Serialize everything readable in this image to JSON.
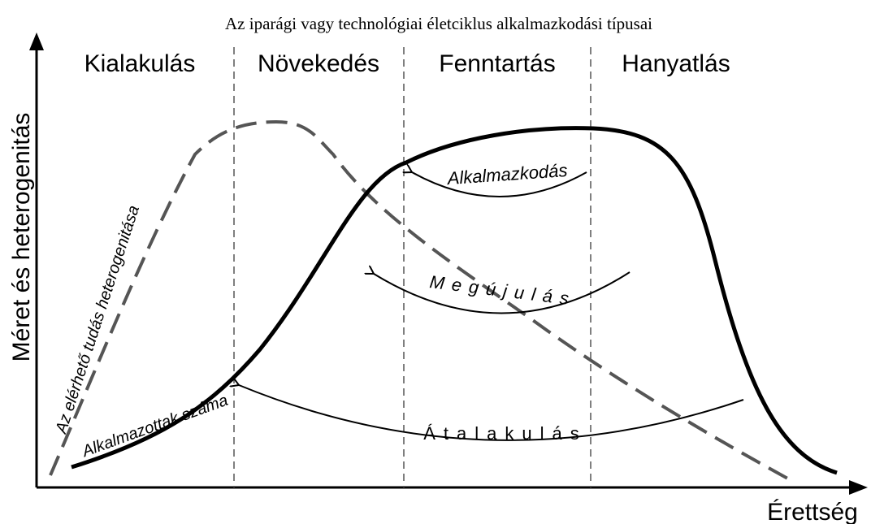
{
  "title": "Az iparági vagy technológiai életciklus alkalmazkodási típusai",
  "y_axis_label": "Méret és heterogenitás",
  "x_axis_label": "Érettség",
  "phases": [
    "Kialakulás",
    "Növekedés",
    "Fenntartás",
    "Hanyatlás"
  ],
  "curves": [
    {
      "label": "Alkalmazottak száma"
    },
    {
      "label": "Az elérhető tudás heterogenitása"
    }
  ],
  "arrows": [
    {
      "label": "Alkalmazkodás"
    },
    {
      "label": "Megújulás"
    },
    {
      "label": "Átalakulás"
    }
  ]
}
